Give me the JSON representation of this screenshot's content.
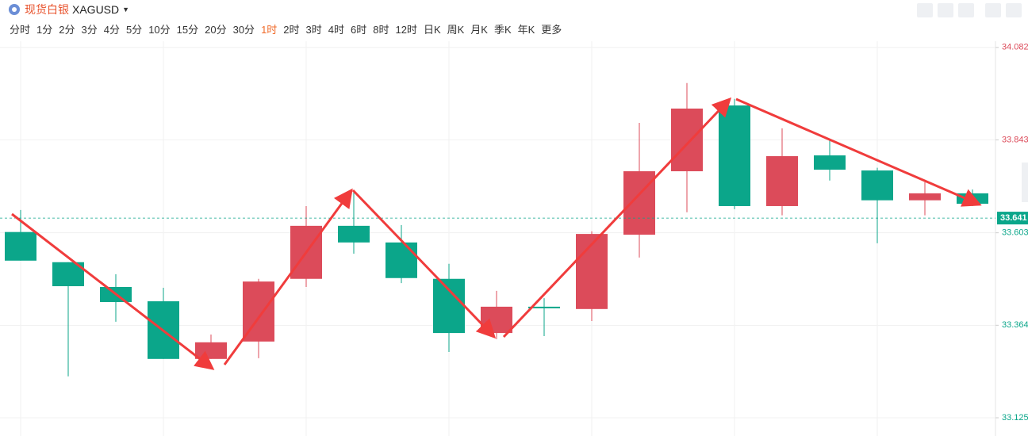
{
  "header": {
    "symbol_name": "现货白银",
    "symbol_code": "XAGUSD",
    "timeframes": [
      "分时",
      "1分",
      "2分",
      "3分",
      "4分",
      "5分",
      "10分",
      "15分",
      "20分",
      "30分",
      "1时",
      "2时",
      "3时",
      "4时",
      "6时",
      "8时",
      "12时",
      "日K",
      "周K",
      "月K",
      "季K",
      "年K",
      "更多"
    ],
    "active_timeframe": 10
  },
  "chart_data": {
    "type": "candlestick",
    "up_color": "#dc4b5a",
    "down_color": "#0ba68a",
    "open": [
      33.605,
      33.527,
      33.463,
      33.426,
      33.277,
      33.322,
      33.484,
      33.621,
      33.578,
      33.484,
      33.344,
      33.412,
      33.406,
      33.598,
      33.762,
      33.932,
      33.672,
      33.803,
      33.764,
      33.687,
      33.705
    ],
    "high": [
      33.662,
      33.527,
      33.496,
      33.461,
      33.34,
      33.484,
      33.672,
      33.713,
      33.623,
      33.523,
      33.453,
      33.434,
      33.607,
      33.887,
      33.99,
      33.949,
      33.873,
      33.846,
      33.771,
      33.734,
      33.715
    ],
    "low": [
      33.531,
      33.232,
      33.373,
      33.277,
      33.277,
      33.279,
      33.463,
      33.549,
      33.473,
      33.295,
      33.328,
      33.336,
      33.375,
      33.539,
      33.656,
      33.664,
      33.648,
      33.738,
      33.576,
      33.648,
      33.672
    ],
    "close": [
      33.531,
      33.465,
      33.424,
      33.277,
      33.32,
      33.477,
      33.621,
      33.578,
      33.486,
      33.344,
      33.412,
      33.408,
      33.6,
      33.762,
      33.924,
      33.672,
      33.801,
      33.766,
      33.687,
      33.705,
      33.678
    ],
    "ylim": [
      33.125,
      34.098
    ],
    "yticks": [
      33.125,
      33.364,
      33.603,
      33.843,
      34.082
    ],
    "last_price": 33.641,
    "grid": true
  }
}
